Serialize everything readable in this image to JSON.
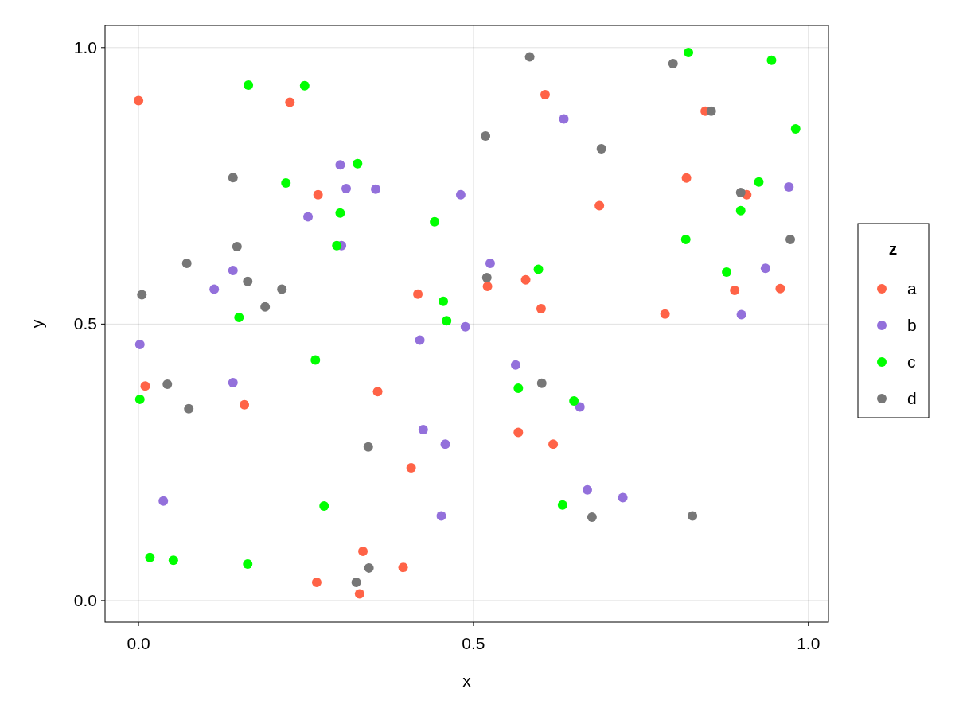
{
  "chart_data": {
    "type": "scatter",
    "xlabel": "x",
    "ylabel": "y",
    "legend_title": "z",
    "legend": "right",
    "grid": true,
    "marker": "circle",
    "xlim": [
      -0.05,
      1.03
    ],
    "ylim": [
      -0.039,
      1.04
    ],
    "xticks": [
      {
        "value": 0,
        "label": "0.0"
      },
      {
        "value": 0.5,
        "label": "0.5"
      },
      {
        "value": 1,
        "label": "1.0"
      }
    ],
    "yticks": [
      {
        "value": 0,
        "label": "0.0"
      },
      {
        "value": 0.5,
        "label": "0.5"
      },
      {
        "value": 1,
        "label": "1.0"
      }
    ],
    "series": [
      {
        "name": "a",
        "color": "#ff6347",
        "x": [
          0.0,
          0.01,
          0.158,
          0.226,
          0.268,
          0.266,
          0.33,
          0.335,
          0.357,
          0.395,
          0.407,
          0.417,
          0.521,
          0.567,
          0.578,
          0.601,
          0.607,
          0.619,
          0.688,
          0.786,
          0.818,
          0.846,
          0.89,
          0.908,
          0.958
        ],
        "values": [
          0.904,
          0.388,
          0.354,
          0.901,
          0.734,
          0.033,
          0.012,
          0.089,
          0.378,
          0.06,
          0.24,
          0.554,
          0.568,
          0.304,
          0.58,
          0.528,
          0.915,
          0.283,
          0.714,
          0.518,
          0.764,
          0.885,
          0.561,
          0.734,
          0.564
        ]
      },
      {
        "name": "b",
        "color": "#9370db",
        "x": [
          0.002,
          0.037,
          0.113,
          0.141,
          0.141,
          0.253,
          0.301,
          0.303,
          0.31,
          0.354,
          0.42,
          0.425,
          0.452,
          0.458,
          0.481,
          0.488,
          0.525,
          0.563,
          0.635,
          0.659,
          0.67,
          0.723,
          0.9,
          0.936,
          0.971
        ],
        "values": [
          0.463,
          0.18,
          0.563,
          0.597,
          0.394,
          0.694,
          0.788,
          0.642,
          0.745,
          0.744,
          0.471,
          0.309,
          0.153,
          0.283,
          0.734,
          0.495,
          0.61,
          0.426,
          0.871,
          0.35,
          0.2,
          0.186,
          0.517,
          0.601,
          0.748
        ]
      },
      {
        "name": "c",
        "color": "#00ff00",
        "x": [
          0.002,
          0.017,
          0.052,
          0.164,
          0.15,
          0.163,
          0.22,
          0.248,
          0.264,
          0.277,
          0.301,
          0.296,
          0.327,
          0.442,
          0.455,
          0.46,
          0.567,
          0.597,
          0.633,
          0.65,
          0.821,
          0.817,
          0.878,
          0.899,
          0.926,
          0.945,
          0.981
        ],
        "values": [
          0.364,
          0.078,
          0.073,
          0.932,
          0.512,
          0.066,
          0.755,
          0.931,
          0.435,
          0.171,
          0.701,
          0.642,
          0.79,
          0.685,
          0.541,
          0.506,
          0.384,
          0.599,
          0.173,
          0.361,
          0.991,
          0.653,
          0.594,
          0.705,
          0.757,
          0.977,
          0.853
        ]
      },
      {
        "name": "d",
        "color": "#777777",
        "x": [
          0.005,
          0.043,
          0.072,
          0.075,
          0.141,
          0.147,
          0.163,
          0.189,
          0.214,
          0.325,
          0.343,
          0.344,
          0.518,
          0.52,
          0.584,
          0.602,
          0.677,
          0.691,
          0.798,
          0.827,
          0.855,
          0.899,
          0.973
        ],
        "values": [
          0.553,
          0.391,
          0.61,
          0.347,
          0.765,
          0.64,
          0.577,
          0.531,
          0.563,
          0.033,
          0.278,
          0.059,
          0.84,
          0.584,
          0.983,
          0.393,
          0.151,
          0.817,
          0.971,
          0.153,
          0.885,
          0.738,
          0.653
        ]
      }
    ]
  }
}
